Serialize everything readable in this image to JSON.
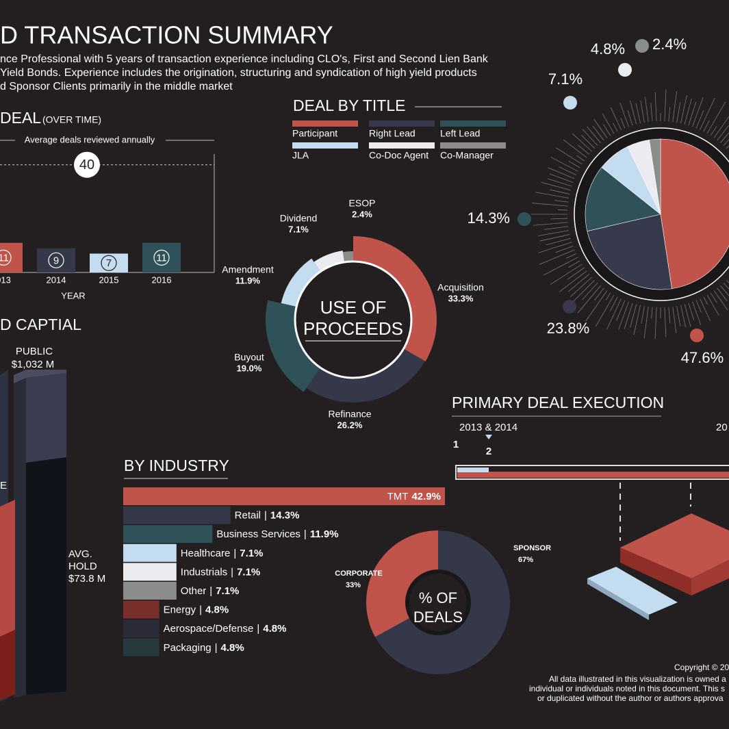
{
  "header": {
    "title": "D TRANSACTION SUMMARY",
    "lines": [
      "nce Professional with 5 years of transaction experience including CLO's, First and Second Lien Bank",
      " Yield Bonds. Experience includes the origination, structuring and syndication of high yield products",
      "d Sponsor Clients primarily in the middle market"
    ]
  },
  "chart_data": [
    {
      "type": "bar",
      "title": "DEAL",
      "subtitle": "(OVER TIME)",
      "x_label": "YEAR",
      "categories": [
        "013",
        "2014",
        "2015",
        "2016"
      ],
      "values": [
        11,
        9,
        7,
        11
      ],
      "colors": [
        "#c0544a",
        "#353849",
        "#c4dcef",
        "#2f5259"
      ],
      "ylim": [
        0,
        44
      ],
      "reference": {
        "label": "Average deals reviewed annually",
        "value": 40
      }
    },
    {
      "type": "pie",
      "title": "DEAL BY TITLE",
      "categories": [
        "Participant",
        "Right Lead",
        "Left Lead",
        "JLA",
        "Co-Doc Agent",
        "Co-Manager"
      ],
      "values": [
        47.6,
        23.8,
        14.3,
        7.1,
        4.8,
        2.4
      ],
      "value_labels": [
        "47.6%",
        "23.8%",
        "14.3%",
        "7.1%",
        "4.8%",
        "2.4%"
      ],
      "colors": [
        "#c0544a",
        "#363a4c",
        "#2f5259",
        "#c4dcef",
        "#ecebef",
        "#8c8c8c"
      ]
    },
    {
      "type": "donut",
      "center_text": [
        "USE OF",
        "PROCEEDS"
      ],
      "categories": [
        "Acquisition",
        "Refinance",
        "Buyout",
        "Amendment",
        "Dividend",
        "ESOP"
      ],
      "values": [
        33.3,
        26.2,
        19.0,
        11.9,
        7.1,
        2.4
      ],
      "value_labels": [
        "33.3%",
        "26.2%",
        "19.0%",
        "11.9%",
        "7.1%",
        "2.4%"
      ],
      "colors": [
        "#c0544a",
        "#353849",
        "#2f5259",
        "#c4dcef",
        "#ecebef",
        "#8c8c8c"
      ]
    },
    {
      "type": "hbar",
      "title": "BY INDUSTRY",
      "separator": "|",
      "categories": [
        "TMT",
        "Retail",
        "Business Services",
        "Healthcare",
        "Industrials",
        "Other",
        "Energy",
        "Aerospace/Defense",
        "Packaging"
      ],
      "values": [
        42.9,
        14.3,
        11.9,
        7.1,
        7.1,
        7.1,
        4.8,
        4.8,
        4.8
      ],
      "value_labels": [
        "42.9%",
        "14.3%",
        "11.9%",
        "7.1%",
        "7.1%",
        "7.1%",
        "4.8%",
        "4.8%",
        "4.8%"
      ],
      "colors": [
        "#c0544a",
        "#353849",
        "#2f5259",
        "#c4dcef",
        "#ecebef",
        "#8c8c8c",
        "#7a2f2a",
        "#2a2b36",
        "#263a3e"
      ],
      "xlim": [
        0,
        45
      ]
    },
    {
      "type": "donut",
      "center_text": [
        "% OF",
        "DEALS"
      ],
      "categories": [
        "SPONSOR",
        "CORPORATE"
      ],
      "values": [
        67,
        33
      ],
      "value_labels": [
        "67%",
        "33%"
      ],
      "colors": [
        "#353849",
        "#c0544a"
      ]
    }
  ],
  "capital": {
    "title": "D CAPTIAL",
    "public_label": "PUBLIC",
    "public_value": "$1,032 M",
    "cropped_label": "E",
    "hold_label": [
      "AVG.",
      "HOLD"
    ],
    "hold_value": "$73.8 M"
  },
  "execution": {
    "title": "PRIMARY DEAL EXECUTION",
    "period_1": "2013 & 2014",
    "period_2": "20",
    "step_1": "1",
    "step_2": "2"
  },
  "footer": {
    "lines": [
      "Copyright © 20",
      "All data illustrated in this visualization is owned a",
      "individual or individuals noted in this document. This s",
      "or duplicated without the author or authors approva"
    ]
  }
}
